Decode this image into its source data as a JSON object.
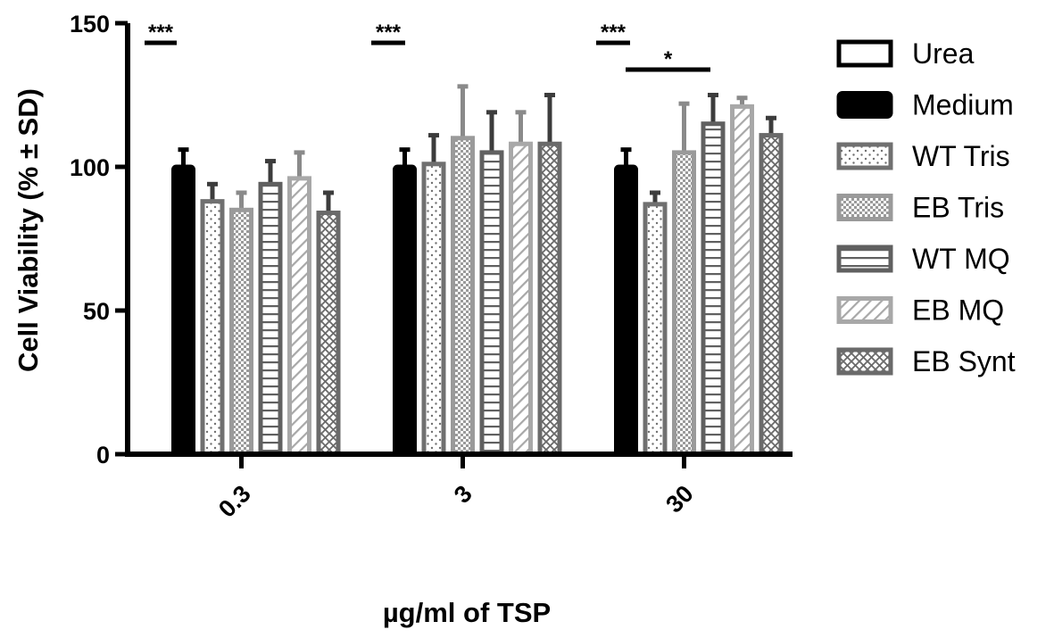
{
  "chart_data": {
    "type": "bar",
    "ylabel": "Cell Viability (% ± SD)",
    "xlabel": "µg/ml  of TSP",
    "ylim": [
      0,
      150
    ],
    "yticks": [
      "0",
      "50",
      "100",
      "150"
    ],
    "categories": [
      "0.3",
      "3",
      "30"
    ],
    "legend_position": "right",
    "series": [
      {
        "name": "Urea",
        "pattern": "open",
        "color": "#ffffff",
        "values": [
          0,
          0,
          0
        ],
        "errors": [
          0,
          0,
          0
        ]
      },
      {
        "name": "Medium",
        "pattern": "solid",
        "color": "#000000",
        "values": [
          100,
          100,
          100
        ],
        "errors": [
          6,
          6,
          6
        ]
      },
      {
        "name": "WT Tris",
        "pattern": "dots",
        "color": "#707070",
        "values": [
          88,
          101,
          87
        ],
        "errors": [
          6,
          10,
          4
        ]
      },
      {
        "name": "EB Tris",
        "pattern": "checker",
        "color": "#9a9a9a",
        "values": [
          85,
          110,
          105
        ],
        "errors": [
          6,
          18,
          17
        ]
      },
      {
        "name": "WT MQ",
        "pattern": "hlines",
        "color": "#606060",
        "values": [
          94,
          105,
          115
        ],
        "errors": [
          8,
          14,
          10
        ]
      },
      {
        "name": "EB MQ",
        "pattern": "diag",
        "color": "#a8a8a8",
        "values": [
          96,
          108,
          121
        ],
        "errors": [
          9,
          11,
          3
        ]
      },
      {
        "name": "EB Synt",
        "pattern": "crosshatch",
        "color": "#6a6a6a",
        "values": [
          84,
          108,
          111
        ],
        "errors": [
          7,
          17,
          6
        ]
      }
    ],
    "annotations": [
      {
        "text": "***",
        "group": "0.3"
      },
      {
        "text": "***",
        "group": "3"
      },
      {
        "text": "***",
        "group": "30"
      },
      {
        "text": "*",
        "group": "30"
      }
    ]
  }
}
